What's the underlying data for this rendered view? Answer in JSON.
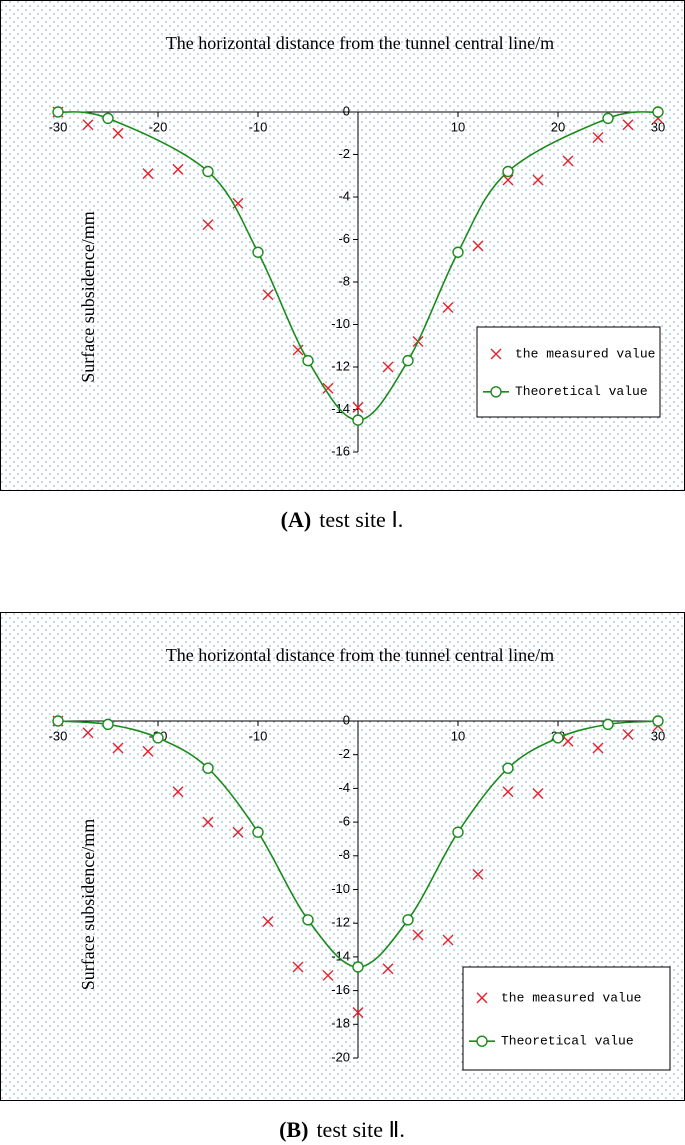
{
  "chart_data": [
    {
      "type": "scatter-line",
      "title": "The  horizontal distance from the tunnel central line/m",
      "y_label": "Surface subsidence/mm",
      "caption_label": "(A)",
      "caption": "test site Ⅰ.",
      "xlim": [
        -30,
        30
      ],
      "xticks": [
        -30,
        -20,
        -10,
        0,
        10,
        20,
        30
      ],
      "ylim": [
        -16,
        0
      ],
      "yticks": [
        0,
        -2,
        -4,
        -6,
        -8,
        -10,
        -12,
        -14,
        -16
      ],
      "legend": "lower right",
      "series": [
        {
          "name": "the measured value",
          "color": "#e8202a",
          "marker": "x",
          "x": [
            -30,
            -27,
            -24,
            -21,
            -18,
            -15,
            -12,
            -9,
            -6,
            -3,
            0,
            3,
            6,
            9,
            12,
            15,
            18,
            21,
            24,
            27,
            30
          ],
          "values": [
            0,
            -0.6,
            -1.0,
            -2.9,
            -2.7,
            -5.3,
            -4.3,
            -8.6,
            -11.2,
            -13.0,
            -13.9,
            -12.0,
            -10.8,
            -9.2,
            -6.3,
            -3.2,
            -3.2,
            -2.3,
            -1.2,
            -0.6,
            -0.3
          ]
        },
        {
          "name": "Theoretical value",
          "color": "#1a8c1a",
          "marker": "circle-line",
          "x": [
            -30,
            -25,
            -15,
            -10,
            -5,
            0,
            5,
            10,
            15,
            25,
            30
          ],
          "values": [
            0,
            -0.3,
            -2.8,
            -6.6,
            -11.7,
            -14.5,
            -11.7,
            -6.6,
            -2.8,
            -0.3,
            0
          ]
        }
      ]
    },
    {
      "type": "scatter-line",
      "title": "The  horizontal distance from the tunnel central line/m",
      "y_label": "Surface subsidence/mm",
      "caption_label": "(B)",
      "caption": "test site Ⅱ.",
      "xlim": [
        -30,
        30
      ],
      "xticks": [
        -30,
        -20,
        -10,
        0,
        10,
        20,
        30
      ],
      "ylim": [
        -20,
        0
      ],
      "yticks": [
        0,
        -2,
        -4,
        -6,
        -8,
        -10,
        -12,
        -14,
        -16,
        -18,
        -20
      ],
      "legend": "lower right",
      "series": [
        {
          "name": "the measured value",
          "color": "#e8202a",
          "marker": "x",
          "x": [
            -30,
            -27,
            -24,
            -21,
            -18,
            -15,
            -12,
            -9,
            -6,
            -3,
            0,
            3,
            6,
            9,
            12,
            15,
            18,
            21,
            24,
            27,
            30
          ],
          "values": [
            0,
            -0.7,
            -1.6,
            -1.8,
            -4.2,
            -6.0,
            -6.6,
            -11.9,
            -14.6,
            -15.1,
            -17.3,
            -14.7,
            -12.7,
            -13.0,
            -9.1,
            -4.2,
            -4.3,
            -1.2,
            -1.6,
            -0.8,
            -0.3
          ]
        },
        {
          "name": "Theoretical value",
          "color": "#1a8c1a",
          "marker": "circle-line",
          "x": [
            -30,
            -25,
            -20,
            -15,
            -10,
            -5,
            0,
            5,
            10,
            15,
            20,
            25,
            30
          ],
          "values": [
            0,
            -0.2,
            -1.0,
            -2.8,
            -6.6,
            -11.8,
            -14.6,
            -11.8,
            -6.6,
            -2.8,
            -1.0,
            -0.2,
            0
          ]
        }
      ]
    }
  ]
}
